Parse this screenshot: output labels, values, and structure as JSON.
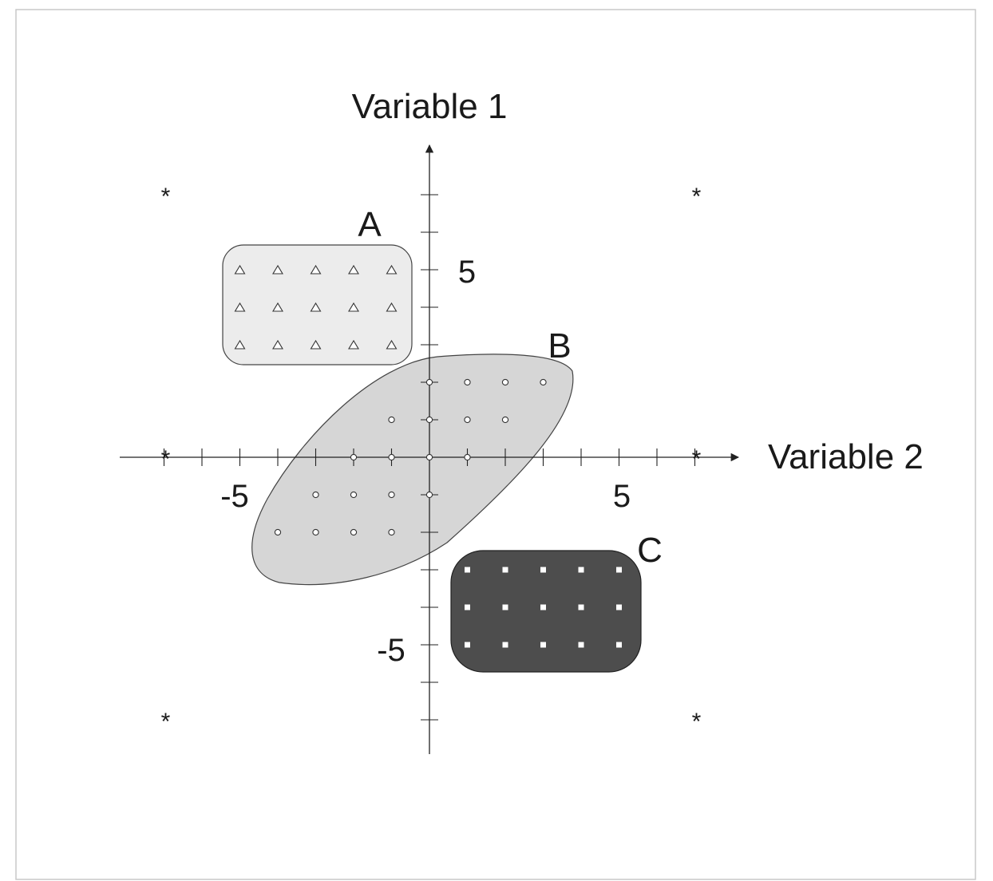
{
  "diagram": {
    "axis_labels": {
      "vertical": "Variable 1",
      "horizontal": "Variable 2"
    },
    "tick_labels": {
      "x_negative": "-5",
      "x_positive": "5",
      "y_positive": "5",
      "y_negative": "-5"
    },
    "axis_range": {
      "x": [
        -7,
        7
      ],
      "y": [
        -7,
        7
      ]
    },
    "tick_step": 1,
    "colors": {
      "frame": "#c8c8c8",
      "axis": "#222222",
      "region_a_fill": "#ececec",
      "region_b_fill": "#d6d6d6",
      "region_c_fill": "#4d4d4d",
      "outline": "#333333"
    },
    "corner_markers": {
      "symbol": "*",
      "points": [
        [
          -7,
          7
        ],
        [
          7,
          7
        ],
        [
          -7,
          -7
        ],
        [
          7,
          -7
        ],
        [
          -7,
          0
        ],
        [
          7,
          0
        ]
      ]
    },
    "clusters": [
      {
        "label": "A",
        "marker": "triangle-icon",
        "points": [
          [
            -5,
            5
          ],
          [
            -4,
            5
          ],
          [
            -3,
            5
          ],
          [
            -2,
            5
          ],
          [
            -1,
            5
          ],
          [
            -5,
            4
          ],
          [
            -4,
            4
          ],
          [
            -3,
            4
          ],
          [
            -2,
            4
          ],
          [
            -1,
            4
          ],
          [
            -5,
            3
          ],
          [
            -4,
            3
          ],
          [
            -3,
            3
          ],
          [
            -2,
            3
          ],
          [
            -1,
            3
          ]
        ]
      },
      {
        "label": "B",
        "marker": "circle-icon",
        "points": [
          [
            0,
            2
          ],
          [
            1,
            2
          ],
          [
            2,
            2
          ],
          [
            3,
            2
          ],
          [
            -1,
            1
          ],
          [
            0,
            1
          ],
          [
            1,
            1
          ],
          [
            2,
            1
          ],
          [
            -2,
            0
          ],
          [
            -1,
            0
          ],
          [
            0,
            0
          ],
          [
            1,
            0
          ],
          [
            -3,
            -1
          ],
          [
            -2,
            -1
          ],
          [
            -1,
            -1
          ],
          [
            0,
            -1
          ],
          [
            -4,
            -2
          ],
          [
            -3,
            -2
          ],
          [
            -2,
            -2
          ],
          [
            -1,
            -2
          ]
        ]
      },
      {
        "label": "C",
        "marker": "square-icon",
        "points": [
          [
            1,
            -3
          ],
          [
            2,
            -3
          ],
          [
            3,
            -3
          ],
          [
            4,
            -3
          ],
          [
            5,
            -3
          ],
          [
            1,
            -4
          ],
          [
            2,
            -4
          ],
          [
            3,
            -4
          ],
          [
            4,
            -4
          ],
          [
            5,
            -4
          ],
          [
            1,
            -5
          ],
          [
            2,
            -5
          ],
          [
            3,
            -5
          ],
          [
            4,
            -5
          ],
          [
            5,
            -5
          ]
        ]
      }
    ]
  }
}
